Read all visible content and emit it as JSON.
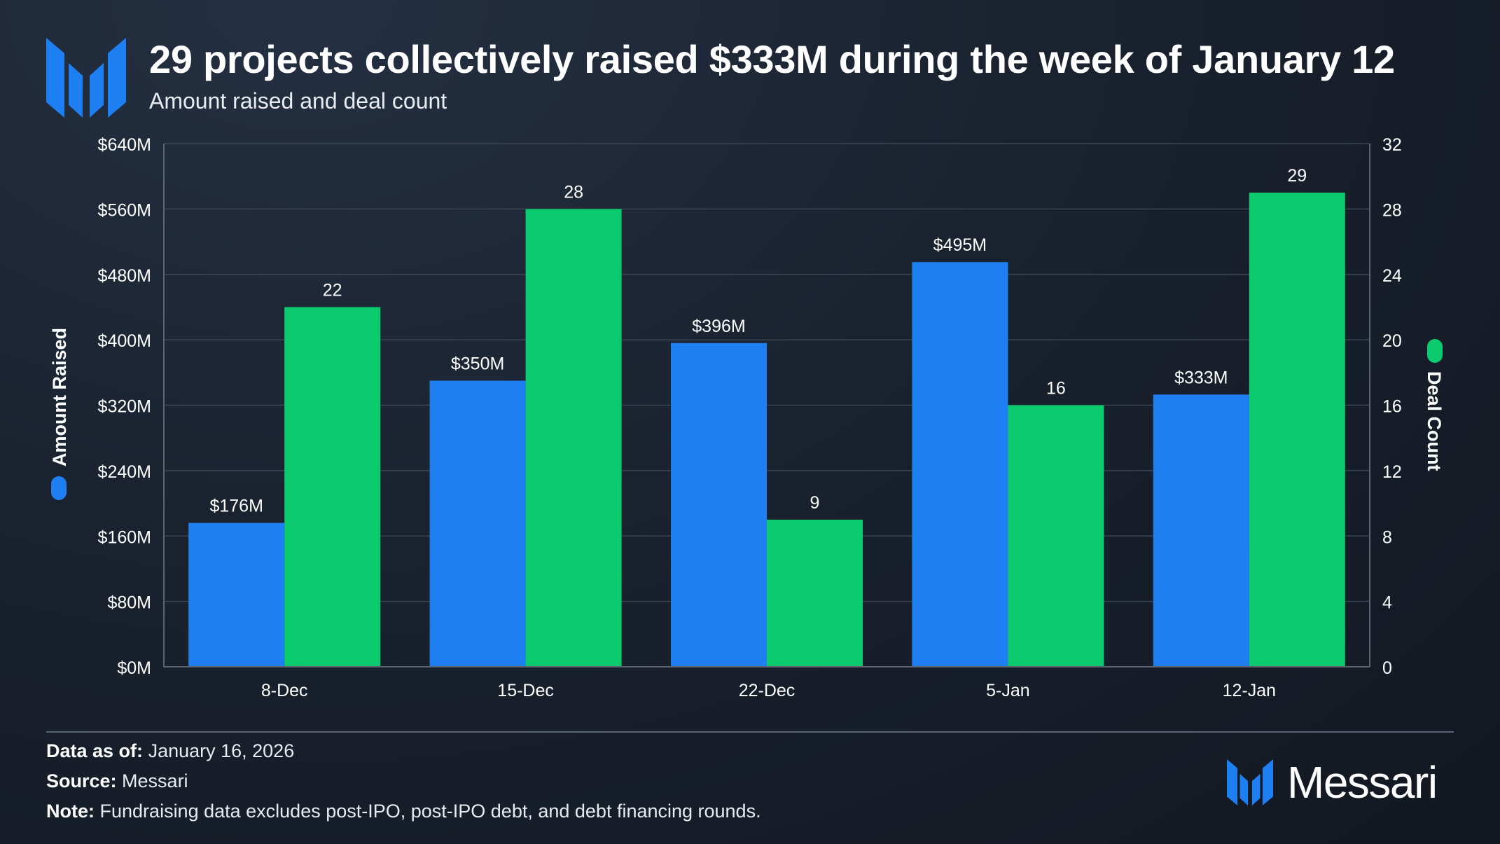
{
  "header": {
    "title": "29 projects collectively raised $333M during the week of January 12",
    "subtitle": "Amount raised and deal count"
  },
  "chart_data": {
    "type": "bar",
    "categories": [
      "8-Dec",
      "15-Dec",
      "22-Dec",
      "5-Jan",
      "12-Jan"
    ],
    "series": [
      {
        "name": "Amount Raised",
        "axis": "left",
        "color": "#1e7ff3",
        "values": [
          176,
          350,
          396,
          495,
          333
        ],
        "labels": [
          "$176M",
          "$350M",
          "$396M",
          "$495M",
          "$333M"
        ]
      },
      {
        "name": "Deal Count",
        "axis": "right",
        "color": "#0ccb6e",
        "values": [
          22,
          28,
          9,
          16,
          29
        ],
        "labels": [
          "22",
          "28",
          "9",
          "16",
          "29"
        ]
      }
    ],
    "left_axis": {
      "label": "Amount Raised",
      "range": [
        0,
        640
      ],
      "ticks": [
        "$0M",
        "$80M",
        "$160M",
        "$240M",
        "$320M",
        "$400M",
        "$480M",
        "$560M",
        "$640M"
      ]
    },
    "right_axis": {
      "label": "Deal Count",
      "range": [
        0,
        32
      ],
      "ticks": [
        "0",
        "4",
        "8",
        "12",
        "16",
        "20",
        "24",
        "28",
        "32"
      ]
    },
    "grid": true
  },
  "footer": {
    "data_as_of_label": "Data as of:",
    "data_as_of_value": "January 16, 2026",
    "source_label": "Source:",
    "source_value": "Messari",
    "note_label": "Note:",
    "note_value": "Fundraising data excludes post-IPO, post-IPO debt, and debt financing rounds."
  },
  "brand": {
    "name": "Messari",
    "logo_color": "#1e7ff3",
    "icon": "messari-logo-icon"
  }
}
